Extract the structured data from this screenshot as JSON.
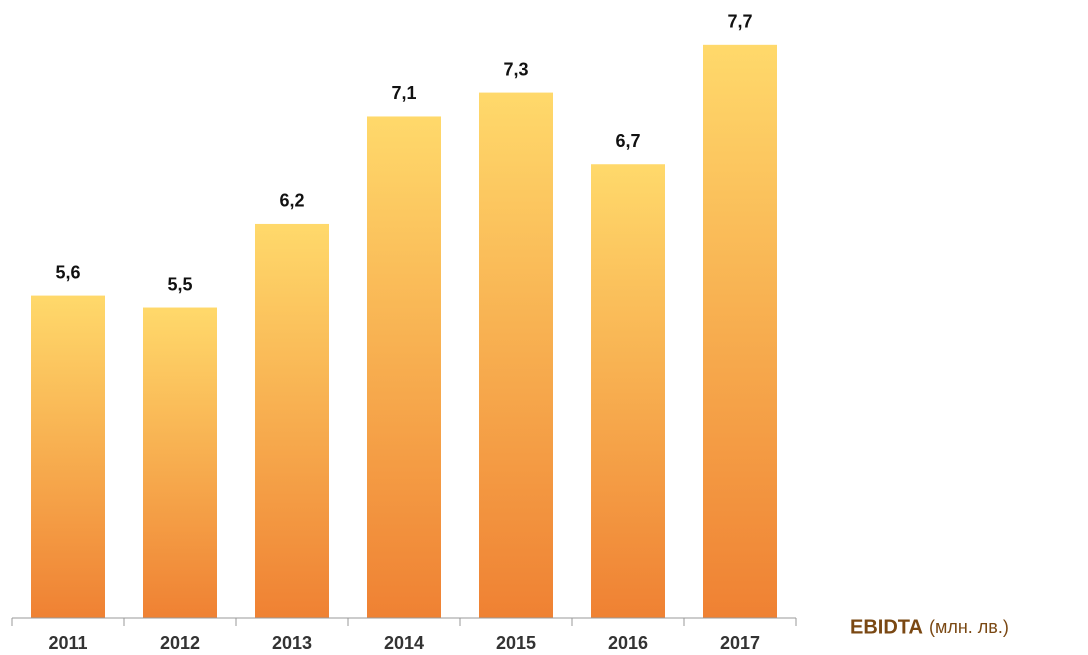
{
  "chart_data": {
    "type": "bar",
    "categories": [
      "2011",
      "2012",
      "2013",
      "2014",
      "2015",
      "2016",
      "2017"
    ],
    "values": [
      5.6,
      5.5,
      6.2,
      7.1,
      7.3,
      6.7,
      7.7
    ],
    "value_labels": [
      "5,6",
      "5,5",
      "6,2",
      "7,1",
      "7,3",
      "6,7",
      "7,7"
    ],
    "color": [
      "#ffd96b",
      "#ef8133"
    ],
    "ylim": [
      2.9,
      8.0
    ],
    "label": "EBIDTA",
    "unit_label": "(млн. лв.)"
  }
}
